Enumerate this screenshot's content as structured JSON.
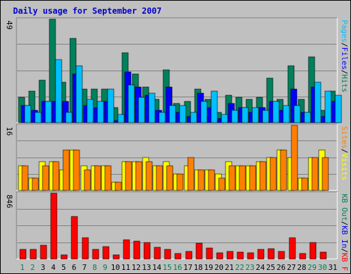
{
  "chart_data": {
    "type": "bar",
    "title": "Daily usage for September 2007",
    "categories": [
      "1",
      "2",
      "3",
      "4",
      "5",
      "6",
      "7",
      "8",
      "9",
      "10",
      "11",
      "12",
      "13",
      "14",
      "15",
      "16",
      "17",
      "18",
      "19",
      "20",
      "21",
      "22",
      "23",
      "24",
      "25",
      "26",
      "27",
      "28",
      "29",
      "30",
      "31"
    ],
    "weekend_days": [
      "1",
      "2",
      "8",
      "9",
      "15",
      "16",
      "22",
      "23",
      "29",
      "30"
    ],
    "colors": {
      "day_label": "#000000",
      "weekend_label": "#00804e",
      "title": "#0000cc",
      "hits": "#00805c",
      "files": "#0000ff",
      "pages": "#00c0ff",
      "visits": "#ffff00",
      "sites": "#ff8000",
      "kb_in": "#0000ff",
      "kb_out": "#00805c",
      "kb_f": "#ff0000"
    },
    "panels": [
      {
        "max_label": "49",
        "ymax": 49,
        "legend": [
          {
            "text": "Hits",
            "color": "#00805c"
          },
          {
            "text": "/",
            "color": "#000000"
          },
          {
            "text": "Files",
            "color": "#0000ff"
          },
          {
            "text": "/",
            "color": "#000000"
          },
          {
            "text": "Pages",
            "color": "#00c0ff"
          }
        ],
        "series": [
          {
            "name": "Hits",
            "color": "#00805c",
            "values": [
              12,
              15,
              20,
              49,
              19,
              40,
              16,
              16,
              16,
              7,
              33,
              23,
              17,
              11,
              25,
              9,
              10,
              16,
              11,
              5,
              13,
              12,
              11,
              12,
              21,
              11,
              27,
              11,
              31,
              6,
              15
            ]
          },
          {
            "name": "Files",
            "color": "#0000ff",
            "values": [
              8,
              6,
              10,
              10,
              10,
              23,
              8,
              7,
              10,
              1,
              24,
              17,
              13,
              6,
              17,
              5,
              3,
              14,
              7,
              2,
              9,
              7,
              5,
              7,
              10,
              6,
              16,
              5,
              17,
              3,
              10
            ]
          },
          {
            "name": "Pages",
            "color": "#00c0ff",
            "values": [
              8,
              5,
              10,
              30,
              5,
              27,
              11,
              10,
              16,
              4,
              18,
              12,
              14,
              5,
              8,
              8,
              5,
              10,
              15,
              4,
              6,
              7,
              7,
              6,
              10,
              8,
              8,
              5,
              19,
              15,
              13
            ]
          }
        ]
      },
      {
        "max_label": "16",
        "ymax": 16,
        "legend": [
          {
            "text": "Visits",
            "color": "#ffff00"
          },
          {
            "text": "/",
            "color": "#000000"
          },
          {
            "text": "Sites",
            "color": "#ff8000"
          }
        ],
        "series": [
          {
            "name": "Visits",
            "color": "#ffff00",
            "values": [
              6,
              3,
              7,
              7,
              5,
              10,
              6,
              6,
              6,
              2,
              7,
              7,
              8,
              6,
              7,
              4,
              6,
              5,
              5,
              4,
              7,
              6,
              6,
              7,
              8,
              10,
              8,
              3,
              8,
              10,
              0
            ]
          },
          {
            "name": "Sites",
            "color": "#ff8000",
            "values": [
              6,
              3,
              6,
              7,
              10,
              10,
              5,
              6,
              6,
              2,
              7,
              7,
              7,
              6,
              6,
              4,
              8,
              5,
              5,
              3,
              6,
              6,
              6,
              7,
              8,
              10,
              16,
              3,
              8,
              8,
              0
            ]
          }
        ]
      },
      {
        "max_label": "846",
        "ymax": 846,
        "legend": [
          {
            "text": "KB F",
            "color": "#ff0000"
          },
          {
            "text": "/",
            "color": "#000000"
          },
          {
            "text": "KB In",
            "color": "#0000ff"
          },
          {
            "text": "/",
            "color": "#000000"
          },
          {
            "text": "KB Out",
            "color": "#00805c"
          }
        ],
        "series": [
          {
            "name": "KB F",
            "color": "#ff0000",
            "values": [
              120,
              120,
              180,
              846,
              50,
              550,
              270,
              120,
              160,
              50,
              250,
              230,
              210,
              150,
              120,
              70,
              100,
              200,
              140,
              80,
              100,
              90,
              80,
              120,
              130,
              100,
              270,
              70,
              210,
              90,
              0
            ]
          }
        ]
      }
    ]
  }
}
